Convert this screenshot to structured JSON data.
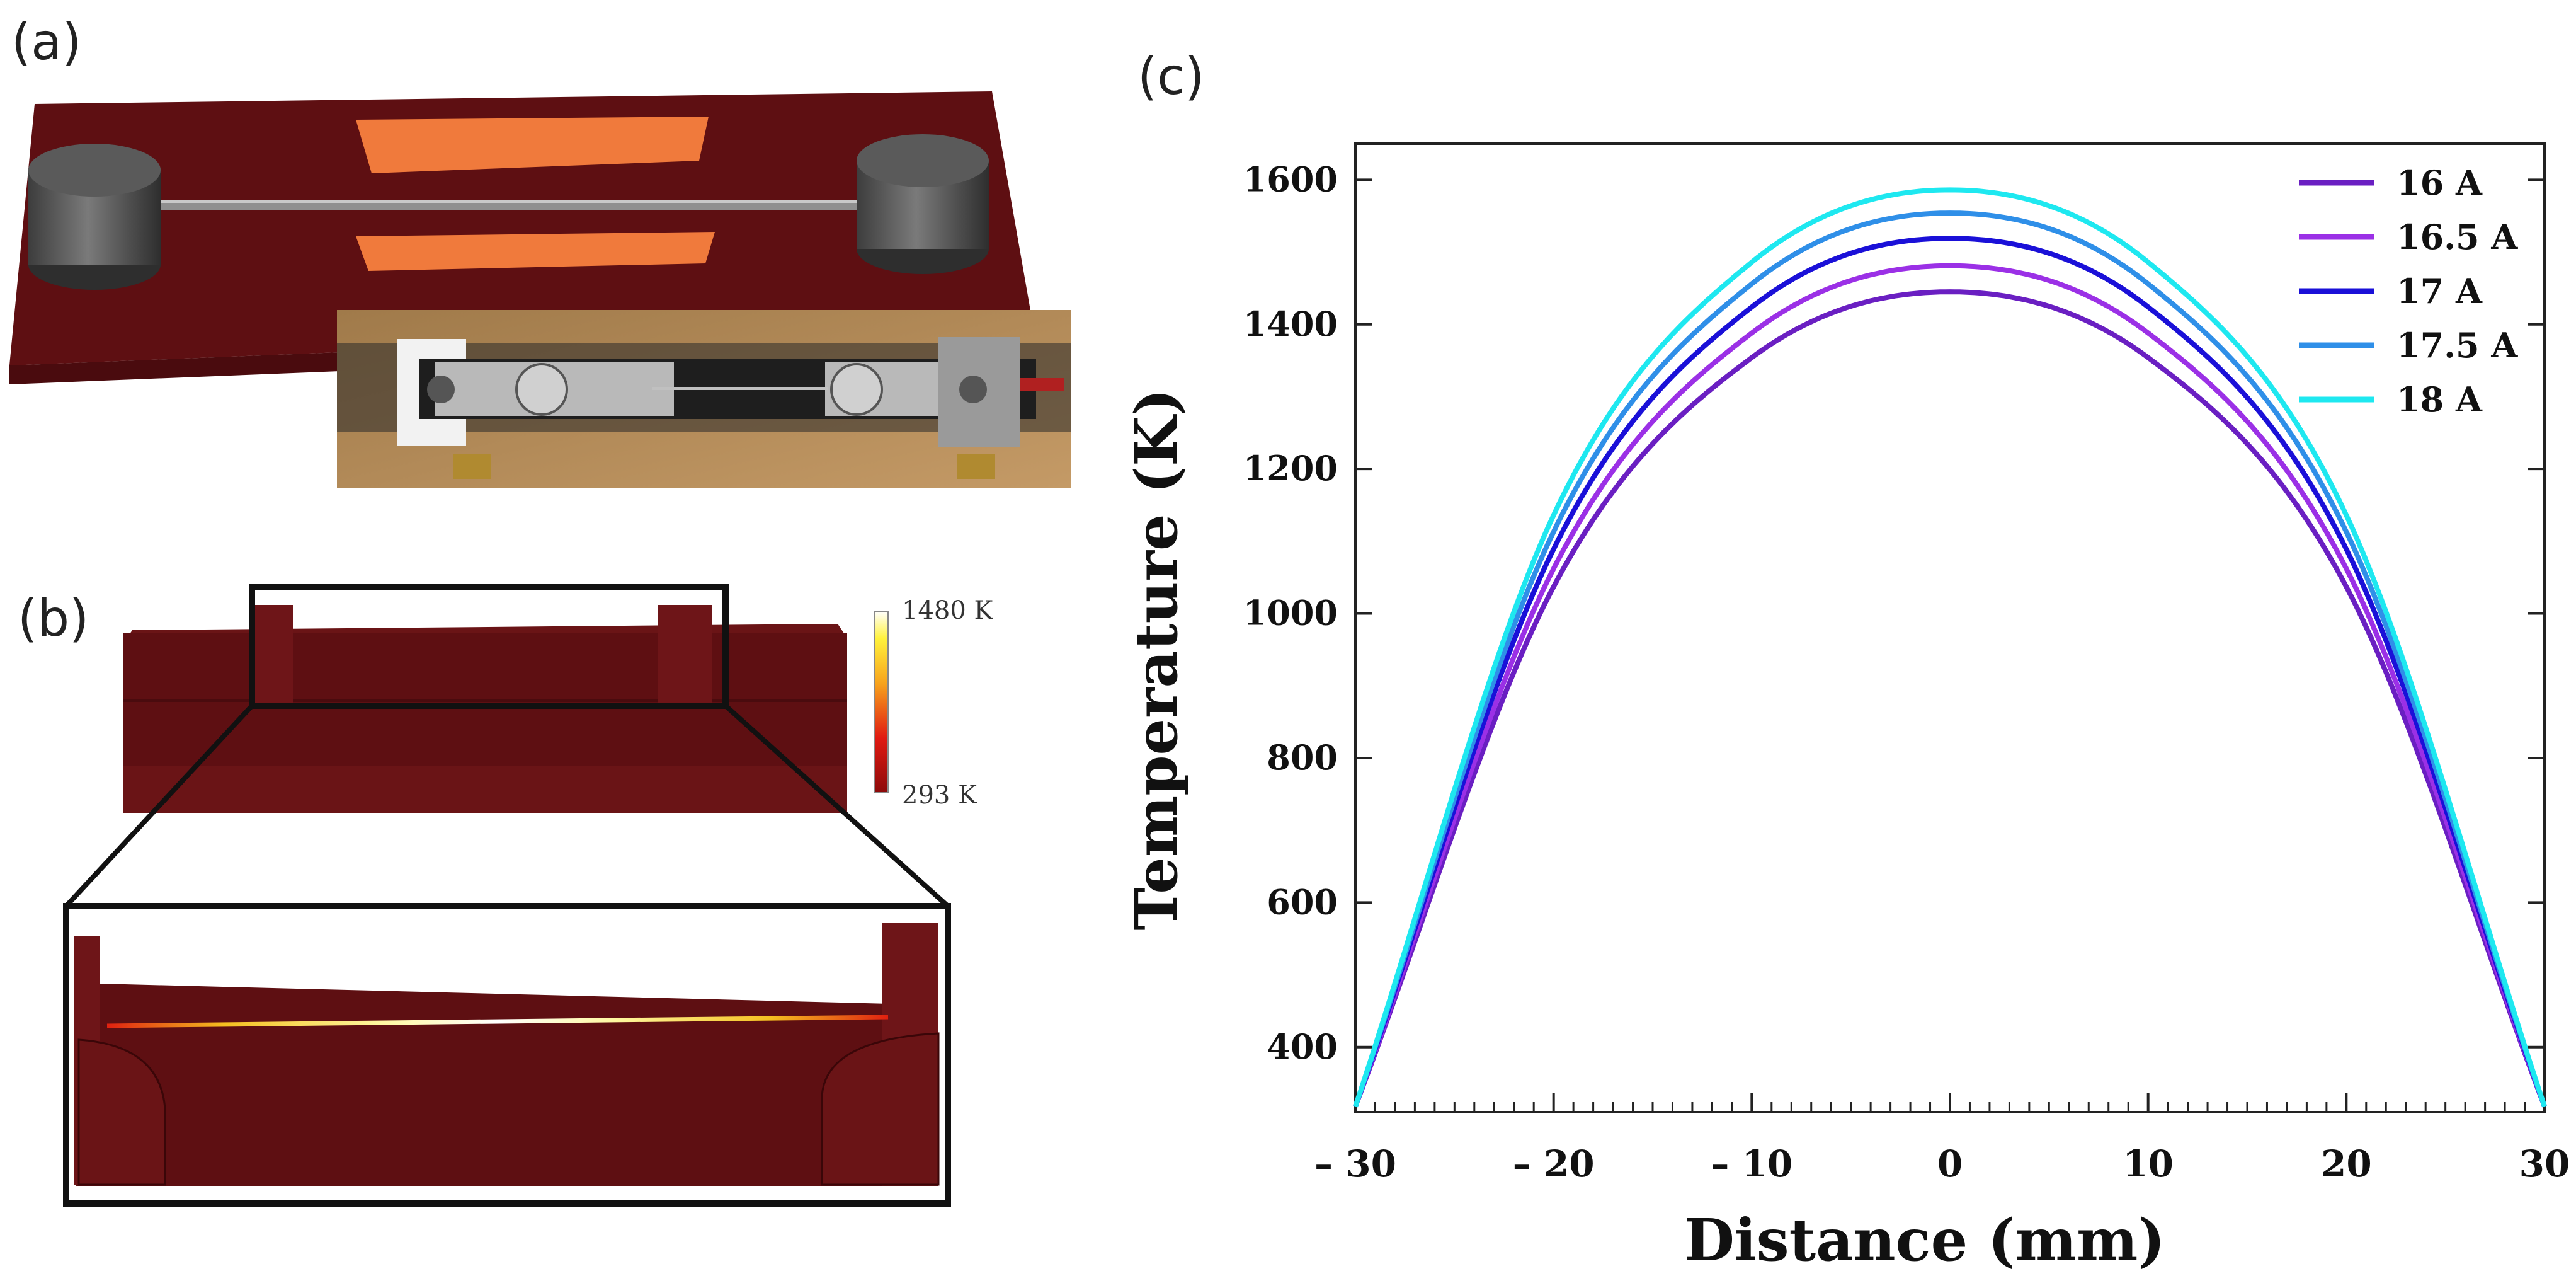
{
  "panels": {
    "a_label": "(a)",
    "b_label": "(b)",
    "c_label": "(c)"
  },
  "colorbar": {
    "max_label": "1480 K",
    "min_label": "293 K"
  },
  "colors": {
    "substrate": "#5e0f12",
    "electrode": "#f07a3c",
    "clamp": "#5a5a5a"
  },
  "chart_data": {
    "type": "line",
    "xlabel": "Distance (mm)",
    "ylabel": "Temperature (K)",
    "xlim": [
      -30,
      30
    ],
    "ylim": [
      310,
      1650
    ],
    "x_ticks": [
      -30,
      -20,
      -10,
      0,
      10,
      20,
      30
    ],
    "x_tick_labels": [
      "– 30",
      "– 20",
      "– 10",
      "0",
      "10",
      "20",
      "30"
    ],
    "y_ticks": [
      400,
      600,
      800,
      1000,
      1200,
      1400,
      1600
    ],
    "y_tick_labels": [
      "400",
      "600",
      "800",
      "1000",
      "1200",
      "1400",
      "1600"
    ],
    "legend_position": "top-right",
    "series": [
      {
        "name": "16 A",
        "color": "#6a1fc2",
        "x": [
          -30,
          -20,
          -10,
          0,
          10,
          20,
          30
        ],
        "values": [
          318,
          1037,
          1354,
          1445,
          1354,
          1037,
          318
        ]
      },
      {
        "name": "16.5 A",
        "color": "#9b30e6",
        "x": [
          -30,
          -20,
          -10,
          0,
          10,
          20,
          30
        ],
        "values": [
          318,
          1062,
          1388,
          1481,
          1388,
          1062,
          318
        ]
      },
      {
        "name": "17 A",
        "color": "#1a10d8",
        "x": [
          -30,
          -20,
          -10,
          0,
          10,
          20,
          30
        ],
        "values": [
          318,
          1089,
          1424,
          1519,
          1424,
          1089,
          318
        ]
      },
      {
        "name": "17.5 A",
        "color": "#2f8fe8",
        "x": [
          -30,
          -20,
          -10,
          0,
          10,
          20,
          30
        ],
        "values": [
          318,
          1113,
          1456,
          1554,
          1456,
          1113,
          318
        ]
      },
      {
        "name": "18 A",
        "color": "#1ee8f0",
        "x": [
          -30,
          -20,
          -10,
          0,
          10,
          20,
          30
        ],
        "values": [
          318,
          1136,
          1486,
          1586,
          1486,
          1136,
          318
        ]
      }
    ]
  }
}
